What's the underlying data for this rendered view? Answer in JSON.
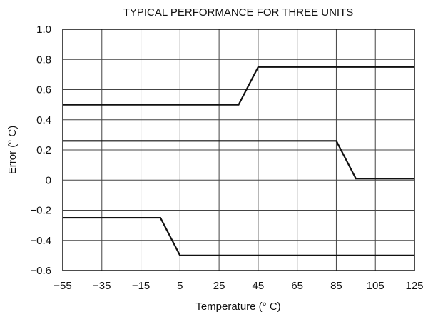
{
  "chart_data": {
    "type": "line",
    "title": "TYPICAL PERFORMANCE FOR THREE UNITS",
    "xlabel": "Temperature (° C)",
    "ylabel": "Error (° C)",
    "xlim": [
      -55,
      125
    ],
    "ylim": [
      -0.6,
      1.0
    ],
    "x_ticks": [
      -55,
      -35,
      -15,
      5,
      25,
      45,
      65,
      85,
      105,
      125
    ],
    "x_tick_labels": [
      "−55",
      "−35",
      "−15",
      "5",
      "25",
      "45",
      "65",
      "85",
      "105",
      "125"
    ],
    "y_ticks": [
      1.0,
      0.8,
      0.6,
      0.4,
      0.2,
      0,
      -0.2,
      -0.4,
      -0.6
    ],
    "y_tick_labels": [
      "1.0",
      "0.8",
      "0.6",
      "0.4",
      "0.2",
      "0",
      "−0.2",
      "−0.4",
      "−0.6"
    ],
    "grid": true,
    "line_color": "#111111",
    "series": [
      {
        "x": [
          -55,
          35,
          45,
          125
        ],
        "values": [
          0.5,
          0.5,
          0.75,
          0.75
        ]
      },
      {
        "x": [
          -55,
          85,
          95,
          125
        ],
        "values": [
          0.26,
          0.26,
          0.01,
          0.01
        ]
      },
      {
        "x": [
          -55,
          -5,
          5,
          125
        ],
        "values": [
          -0.25,
          -0.25,
          -0.5,
          -0.5
        ]
      }
    ]
  }
}
